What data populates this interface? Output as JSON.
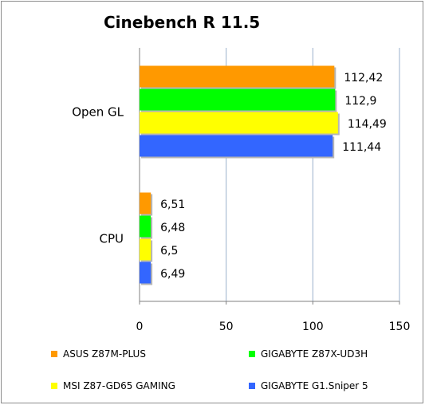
{
  "chart_data": {
    "type": "bar",
    "orientation": "horizontal",
    "title": "Cinebench R 11.5",
    "categories": [
      "Open GL",
      "CPU"
    ],
    "series": [
      {
        "name": "ASUS Z87M-PLUS",
        "color": "#FF9900",
        "values": [
          112.42,
          6.51
        ],
        "labels": [
          "112,42",
          "6,51"
        ]
      },
      {
        "name": "GIGABYTE Z87X-UD3H",
        "color": "#00FF00",
        "values": [
          112.9,
          6.48
        ],
        "labels": [
          "112,9",
          "6,48"
        ]
      },
      {
        "name": "MSI Z87-GD65 GAMING",
        "color": "#FFFF00",
        "values": [
          114.49,
          6.5
        ],
        "labels": [
          "114,49",
          "6,5"
        ]
      },
      {
        "name": "GIGABYTE G1.Sniper 5",
        "color": "#3366FF",
        "values": [
          111.44,
          6.49
        ],
        "labels": [
          "111,44",
          "6,49"
        ]
      }
    ],
    "xlim": [
      0,
      150
    ],
    "xticks": [
      0,
      50,
      100,
      150
    ],
    "xtick_labels": [
      "0",
      "50",
      "100",
      "150"
    ],
    "grid": true,
    "legend_position": "bottom"
  }
}
